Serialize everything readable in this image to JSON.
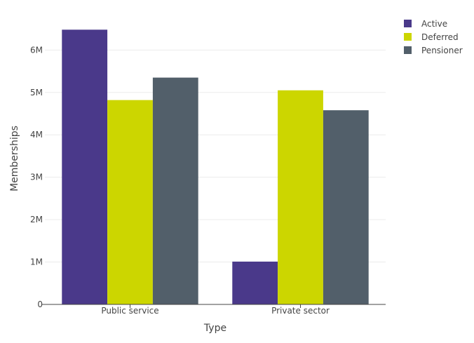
{
  "chart_data": {
    "type": "bar",
    "xlabel": "Type",
    "ylabel": "Memberships",
    "categories": [
      "Public service",
      "Private sector"
    ],
    "series": [
      {
        "name": "Active",
        "color": "#4a398a",
        "values": [
          6480000,
          1010000
        ]
      },
      {
        "name": "Deferred",
        "color": "#ccd600",
        "values": [
          4820000,
          5050000
        ]
      },
      {
        "name": "Pensioner",
        "color": "#525f6a",
        "values": [
          5350000,
          4580000
        ]
      }
    ],
    "ylim": [
      0,
      6750000
    ],
    "yticks": [
      {
        "value": 0,
        "label": "0"
      },
      {
        "value": 1000000,
        "label": "1M"
      },
      {
        "value": 2000000,
        "label": "2M"
      },
      {
        "value": 3000000,
        "label": "3M"
      },
      {
        "value": 4000000,
        "label": "4M"
      },
      {
        "value": 5000000,
        "label": "5M"
      },
      {
        "value": 6000000,
        "label": "6M"
      }
    ],
    "grid": true,
    "legend_position": "top-right"
  }
}
